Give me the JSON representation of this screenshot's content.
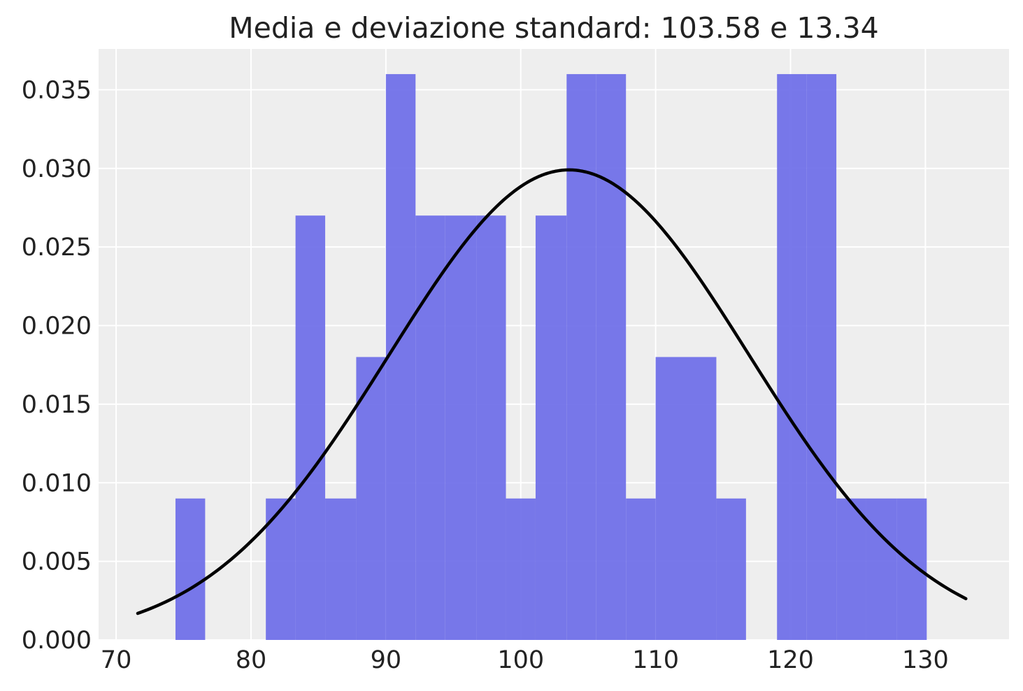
{
  "chart_data": {
    "type": "bar",
    "subtype": "histogram-with-density",
    "title": "Media e deviazione standard: 103.58 e 13.34",
    "xlabel": "",
    "ylabel": "",
    "xlim": [
      68.7,
      136.2
    ],
    "ylim": [
      0,
      0.0376
    ],
    "xticks": [
      70,
      80,
      90,
      100,
      110,
      120,
      130
    ],
    "xtick_labels": [
      "70",
      "80",
      "90",
      "100",
      "110",
      "120",
      "130"
    ],
    "yticks": [
      0.0,
      0.005,
      0.01,
      0.015,
      0.02,
      0.025,
      0.03,
      0.035
    ],
    "ytick_labels": [
      "0.000",
      "0.005",
      "0.010",
      "0.015",
      "0.020",
      "0.025",
      "0.030",
      "0.035"
    ],
    "grid": true,
    "bar_color": "#6e6ee8",
    "background_color": "#eeeeee",
    "curve_color": "#000000",
    "bins": [
      {
        "x0": 74.4,
        "x1": 76.6,
        "density": 0.009
      },
      {
        "x0": 81.1,
        "x1": 83.3,
        "density": 0.009
      },
      {
        "x0": 83.3,
        "x1": 85.5,
        "density": 0.027
      },
      {
        "x0": 85.5,
        "x1": 87.8,
        "density": 0.009
      },
      {
        "x0": 87.8,
        "x1": 90.0,
        "density": 0.018
      },
      {
        "x0": 90.0,
        "x1": 92.2,
        "density": 0.036
      },
      {
        "x0": 92.2,
        "x1": 94.4,
        "density": 0.027
      },
      {
        "x0": 94.4,
        "x1": 96.7,
        "density": 0.027
      },
      {
        "x0": 96.7,
        "x1": 98.9,
        "density": 0.027
      },
      {
        "x0": 98.9,
        "x1": 101.1,
        "density": 0.009
      },
      {
        "x0": 101.1,
        "x1": 103.4,
        "density": 0.027
      },
      {
        "x0": 103.4,
        "x1": 105.6,
        "density": 0.036
      },
      {
        "x0": 105.6,
        "x1": 107.8,
        "density": 0.036
      },
      {
        "x0": 107.8,
        "x1": 110.0,
        "density": 0.009
      },
      {
        "x0": 110.0,
        "x1": 112.3,
        "density": 0.018
      },
      {
        "x0": 112.3,
        "x1": 114.5,
        "density": 0.018
      },
      {
        "x0": 114.5,
        "x1": 116.7,
        "density": 0.009
      },
      {
        "x0": 119.0,
        "x1": 121.2,
        "density": 0.036
      },
      {
        "x0": 121.2,
        "x1": 123.4,
        "density": 0.036
      },
      {
        "x0": 123.4,
        "x1": 125.6,
        "density": 0.009
      },
      {
        "x0": 125.6,
        "x1": 127.9,
        "density": 0.009
      },
      {
        "x0": 127.9,
        "x1": 130.1,
        "density": 0.009
      }
    ],
    "density_curve": {
      "mean": 103.58,
      "std": 13.34,
      "x_min": 71.6,
      "x_max": 133.0
    }
  }
}
